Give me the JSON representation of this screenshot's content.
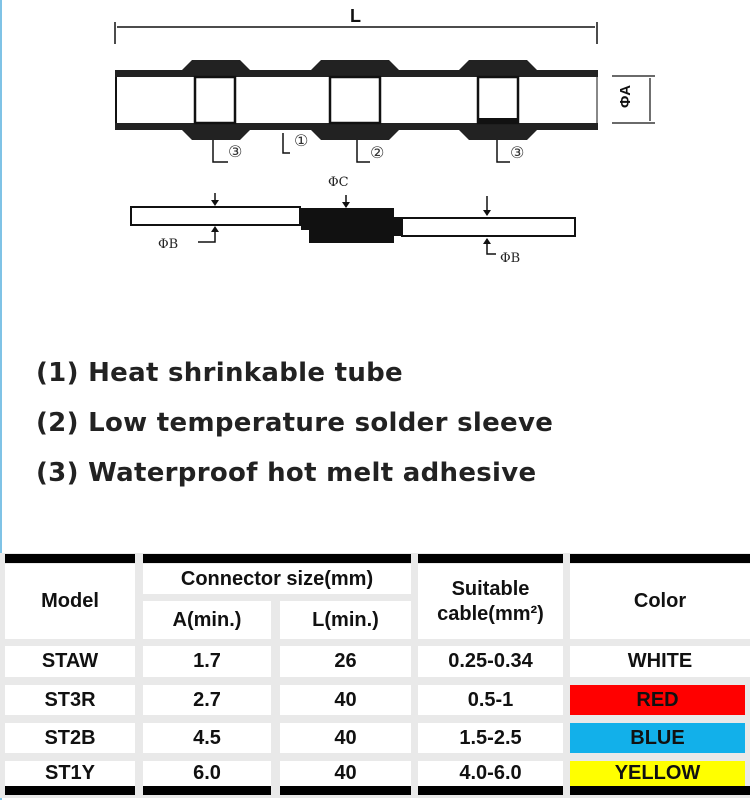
{
  "diagram": {
    "length_label": "L",
    "diameter_a_label": "ΦA",
    "diameter_b_label": "ΦB",
    "diameter_c_label": "ΦC",
    "callouts": [
      "③",
      "①",
      "②",
      "③"
    ]
  },
  "legend": [
    "(1) Heat shrinkable tube",
    "(2) Low temperature solder sleeve",
    "(3) Waterproof hot melt  adhesive"
  ],
  "table": {
    "headers": {
      "model": "Model",
      "connector_size": "Connector size(mm)",
      "a_min": "A(min.)",
      "l_min": "L(min.)",
      "suitable_cable_line1": "Suitable",
      "suitable_cable_line2": "cable(mm²)",
      "color": "Color"
    },
    "rows": [
      {
        "model": "STAW",
        "a": "1.7",
        "l": "26",
        "cable": "0.25-0.34",
        "color": "WHITE",
        "swatch": "#ffffff"
      },
      {
        "model": "ST3R",
        "a": "2.7",
        "l": "40",
        "cable": "0.5-1",
        "color": "RED",
        "swatch": "#ff0000"
      },
      {
        "model": "ST2B",
        "a": "4.5",
        "l": "40",
        "cable": "1.5-2.5",
        "color": "BLUE",
        "swatch": "#12b0ea"
      },
      {
        "model": "ST1Y",
        "a": "6.0",
        "l": "40",
        "cable": "4.0-6.0",
        "color": "YELLOW",
        "swatch": "#ffff00"
      }
    ]
  }
}
